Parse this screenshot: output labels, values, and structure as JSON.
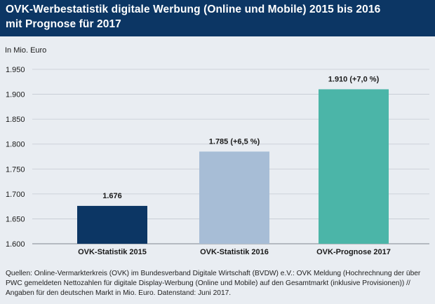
{
  "header": {
    "title_line1": "OVK-Werbestatistik digitale Werbung (Online und Mobile) 2015 bis 2016",
    "title_line2": "mit Prognose für 2017"
  },
  "colors": {
    "header_bg": "#0c3664",
    "background": "#e9edf2",
    "bar_2015": "#0c3664",
    "bar_2016": "#a7bdd6",
    "bar_2017": "#4bb5a8"
  },
  "chart_data": {
    "type": "bar",
    "ylabel": "In Mio. Euro",
    "categories": [
      "OVK-Statistik 2015",
      "OVK-Statistik 2016",
      "OVK-Prognose 2017"
    ],
    "values": [
      1676,
      1785,
      1910
    ],
    "data_labels": [
      "1.676",
      "1.785 (+6,5 %)",
      "1.910 (+7,0 %)"
    ],
    "ylim": [
      1600,
      1950
    ],
    "yticks": [
      1600,
      1650,
      1700,
      1750,
      1800,
      1850,
      1900,
      1950
    ],
    "ytick_labels": [
      "1.600",
      "1.650",
      "1.700",
      "1.750",
      "1.800",
      "1.850",
      "1.900",
      "1.950"
    ],
    "grid": true
  },
  "footer": {
    "source": "Quellen: Online-Vermarkterkreis (OVK) im Bundesverband Digitale Wirtschaft (BVDW) e.V.: OVK Meldung (Hochrechnung der über PWC gemeldeten Nettozahlen für digitale Display-Werbung (Online und Mobile) auf den Gesamtmarkt (inklusive Provisionen)) // Angaben für den deutschen Markt in Mio. Euro. Datenstand: Juni 2017."
  }
}
